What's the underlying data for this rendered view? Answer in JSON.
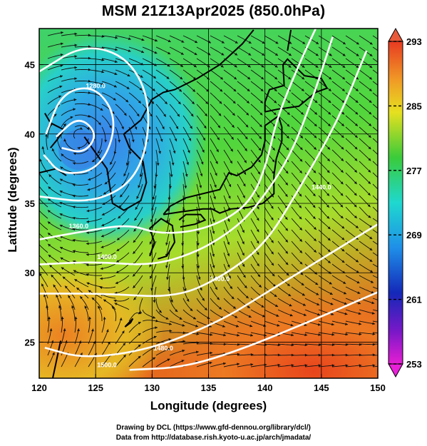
{
  "title": "MSM 21Z13Apr2025 (850.0hPa)",
  "x_axis": {
    "label": "Longitude (degrees)",
    "ticks": [
      "120",
      "125",
      "130",
      "135",
      "140",
      "145",
      "150"
    ]
  },
  "y_axis": {
    "label": "Latitude  (degrees)",
    "ticks": [
      "25",
      "30",
      "35",
      "40",
      "45"
    ]
  },
  "colorbar": {
    "ticks": [
      "293",
      "285",
      "277",
      "269",
      "261",
      "253"
    ]
  },
  "credits": {
    "line1": "Drawing by DCL (https://www.gfd-dennou.org/library/dcl/)",
    "line2": "Data from http://database.rish.kyoto-u.ac.jp/arch/jmadata/"
  },
  "contour_labels": [
    "1280.0",
    "1360.0",
    "1400.0",
    "1400.0",
    "1440.0",
    "1480.0",
    "1500.0"
  ],
  "chart_data": {
    "type": "heatmap",
    "title": "MSM 21Z13Apr2025 (850.0hPa)",
    "xlabel": "Longitude (degrees)",
    "ylabel": "Latitude  (degrees)",
    "xlim": [
      120,
      150
    ],
    "ylim": [
      22.4,
      47.6
    ],
    "color_range": [
      253,
      293
    ],
    "colorbar_ticks": [
      293,
      285,
      277,
      269,
      261,
      253
    ],
    "colors": {
      "cold_center": "#2a7fe6",
      "cool": "#1fd6d6",
      "mid": "#3ad24a",
      "warm": "#e8d020",
      "hot": "#e4541e"
    },
    "cold_center_lonlat": [
      123.5,
      40.0
    ],
    "overlays": [
      "geopotential height contours (white)",
      "wind streamlines (black)",
      "coastlines"
    ]
  }
}
